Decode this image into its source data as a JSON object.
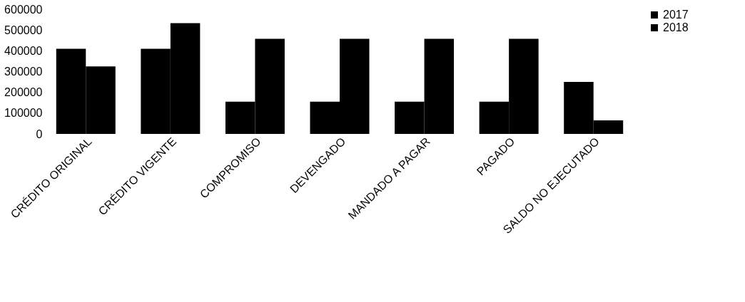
{
  "chart_data": {
    "type": "bar",
    "categories": [
      "CRÉDITO ORIGINAL",
      "CRÉDITO VIGENTE",
      "COMPROMISO",
      "DEVENGADO",
      "MANDADO A PAGAR",
      "PAGADO",
      "SALDO NO EJECUTADO"
    ],
    "series": [
      {
        "name": "2017",
        "color": "#000000",
        "values": [
          410000,
          410000,
          155000,
          155000,
          155000,
          155000,
          250000
        ]
      },
      {
        "name": "2018",
        "color": "#000000",
        "values": [
          325000,
          533000,
          458000,
          458000,
          458000,
          458000,
          65000
        ]
      }
    ],
    "ylim": [
      0,
      600000
    ],
    "yticks": [
      0,
      100000,
      200000,
      300000,
      400000,
      500000,
      600000
    ],
    "grid": false,
    "legend": "right"
  }
}
